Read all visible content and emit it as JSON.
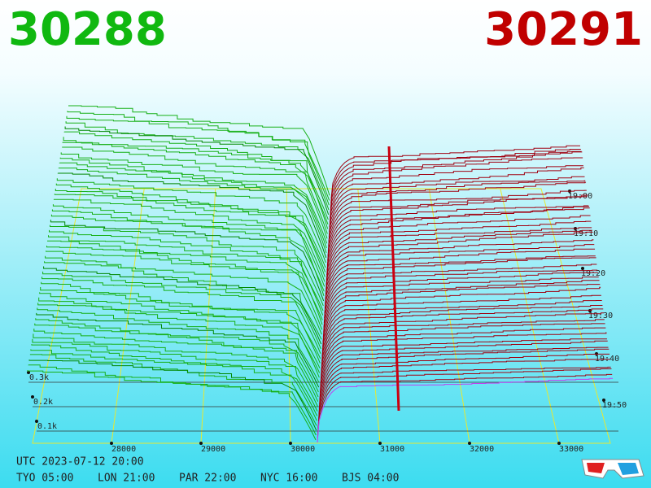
{
  "header": {
    "bid": "30288",
    "ask": "30291"
  },
  "axes": {
    "price_ticks": [
      "28000",
      "29000",
      "30000",
      "31000",
      "32000",
      "33000"
    ],
    "time_ticks": [
      "19:00",
      "19:10",
      "19:20",
      "19:30",
      "19:40",
      "19:50"
    ],
    "volume_ticks": [
      "0.3k",
      "0.2k",
      "0.1k"
    ]
  },
  "footer": {
    "utc": "UTC 2023-07-12 20:00",
    "zones": [
      "TYO 05:00",
      "LON 21:00",
      "PAR 22:00",
      "NYC 16:00",
      "BJS 04:00"
    ]
  }
}
